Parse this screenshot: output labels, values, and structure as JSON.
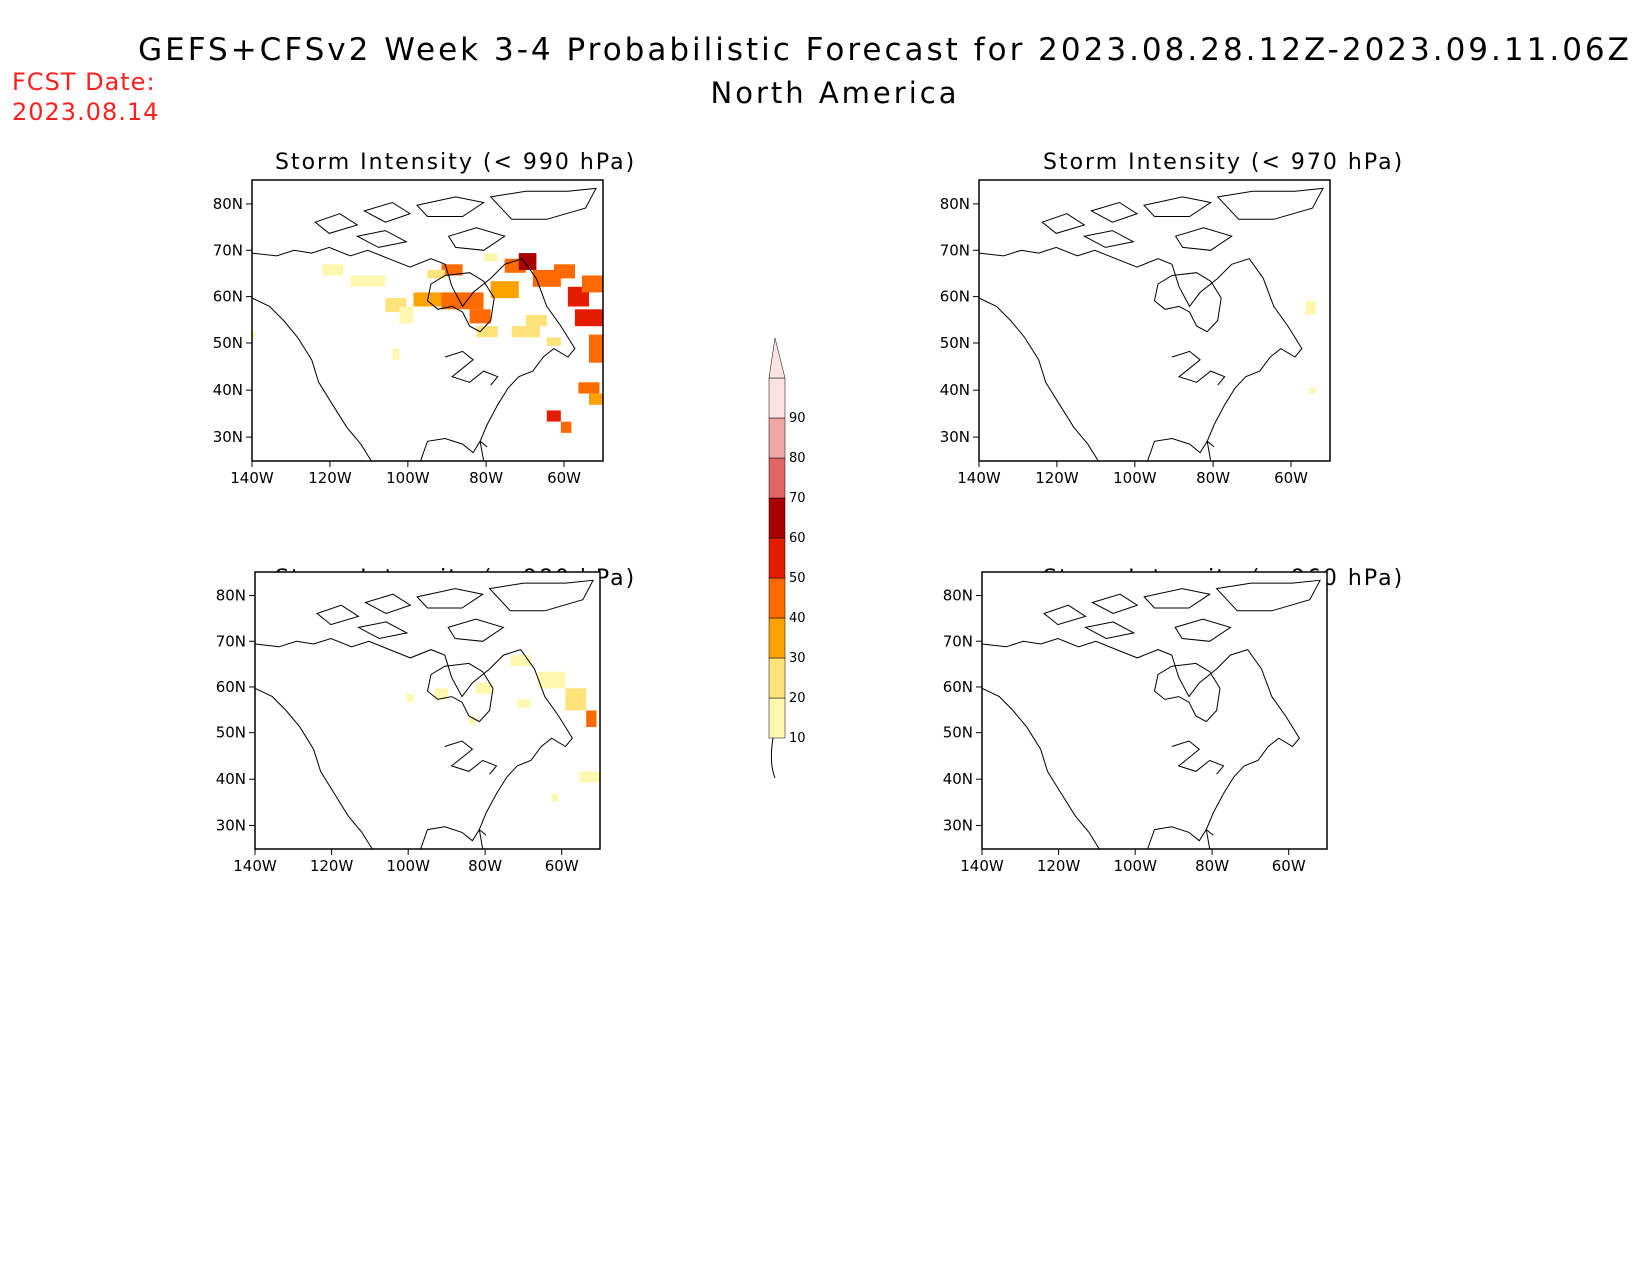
{
  "title_line1": "GEFS+CFSv2 Week 3-4 Probabilistic Forecast for 2023.08.28.12Z-2023.09.11.06Z",
  "title_line2": "North America",
  "fcst_date_label": "FCST Date:",
  "fcst_date_value": "2023.08.14",
  "lat_ticks": [
    "80N",
    "70N",
    "60N",
    "50N",
    "40N",
    "30N"
  ],
  "lon_ticks": [
    "140W",
    "120W",
    "100W",
    "80W",
    "60W"
  ],
  "panels": [
    {
      "id": "p990",
      "title": "Storm Intensity (< 990 hPa)",
      "shading": "high"
    },
    {
      "id": "p970",
      "title": "Storm Intensity (< 970 hPa)",
      "shading": "trace"
    },
    {
      "id": "p980",
      "title": "Storm Intensity (< 980 hPa)",
      "shading": "low"
    },
    {
      "id": "p960",
      "title": "Storm Intensity (< 960 hPa)",
      "shading": "none"
    }
  ],
  "colorbar": {
    "levels": [
      "10",
      "20",
      "30",
      "40",
      "50",
      "60",
      "70",
      "80",
      "90"
    ],
    "colors": [
      "#fff7b0",
      "#fee27a",
      "#ffa200",
      "#ff6a00",
      "#e61c00",
      "#a80000",
      "#e06565",
      "#f2a7a7",
      "#fde2e2"
    ]
  }
}
